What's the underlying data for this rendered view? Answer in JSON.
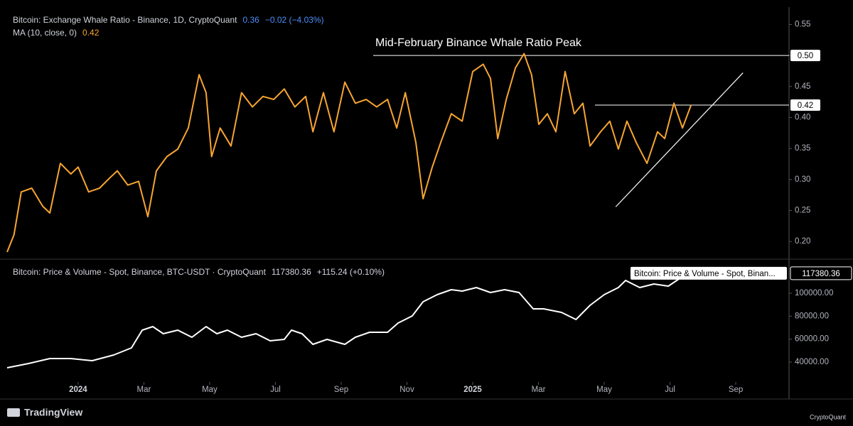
{
  "chart_data": [
    {
      "type": "line",
      "title": "Bitcoin: Exchange Whale Ratio - Binance, 1D, CryptoQuant",
      "last_value": 0.36,
      "change_label": "−0.02 (−4.03%)",
      "indicator": {
        "name": "MA (10, close, 0)",
        "value": 0.42
      },
      "annotation": "Mid-February Binance Whale Ratio Peak",
      "xlim": [
        -2.16,
        21.62
      ],
      "ylim": [
        0.175,
        0.578
      ],
      "yticks": [
        {
          "value": 0.2,
          "label": "0.20"
        },
        0.25,
        {
          "value": 0.3,
          "label": "0.30"
        },
        0.35,
        {
          "value": 0.4,
          "label": "0.40"
        },
        0.45,
        {
          "value": 0.5,
          "label": "0.50"
        },
        0.55
      ],
      "hlines": [
        {
          "value": 0.5,
          "label": "0.50"
        },
        {
          "value": 0.42,
          "label": "0.42"
        }
      ],
      "trendline": {
        "x": [
          16.35,
          20.22
        ],
        "values": [
          0.256,
          0.472
        ]
      },
      "series": [
        {
          "color": "#f7a531",
          "x": [
            -2.16,
            -1.95,
            -1.73,
            -1.41,
            -1.08,
            -0.86,
            -0.54,
            -0.22,
            0,
            0.32,
            0.65,
            0.97,
            1.19,
            1.51,
            1.84,
            2.12,
            2.38,
            2.7,
            3.03,
            3.35,
            3.68,
            3.89,
            4.06,
            4.32,
            4.65,
            4.97,
            5.3,
            5.62,
            5.95,
            6.27,
            6.59,
            6.92,
            7.14,
            7.46,
            7.78,
            8.11,
            8.43,
            8.76,
            9.08,
            9.41,
            9.69,
            9.95,
            10.27,
            10.49,
            10.77,
            11.03,
            11.35,
            11.68,
            12,
            12.32,
            12.54,
            12.76,
            13.02,
            13.3,
            13.56,
            13.79,
            14.01,
            14.27,
            14.53,
            14.81,
            15.09,
            15.35,
            15.57,
            15.89,
            16.17,
            16.43,
            16.69,
            16.97,
            17.3,
            17.62,
            17.84,
            18.12,
            18.38,
            18.64
          ],
          "values": [
            0.183,
            0.211,
            0.28,
            0.286,
            0.257,
            0.246,
            0.326,
            0.309,
            0.32,
            0.28,
            0.286,
            0.303,
            0.314,
            0.291,
            0.297,
            0.24,
            0.314,
            0.337,
            0.349,
            0.383,
            0.469,
            0.44,
            0.337,
            0.383,
            0.354,
            0.44,
            0.417,
            0.434,
            0.429,
            0.446,
            0.417,
            0.434,
            0.377,
            0.44,
            0.377,
            0.457,
            0.423,
            0.429,
            0.417,
            0.429,
            0.383,
            0.44,
            0.36,
            0.269,
            0.32,
            0.36,
            0.406,
            0.394,
            0.474,
            0.486,
            0.463,
            0.366,
            0.429,
            0.48,
            0.503,
            0.469,
            0.389,
            0.406,
            0.377,
            0.474,
            0.406,
            0.423,
            0.354,
            0.377,
            0.394,
            0.349,
            0.394,
            0.36,
            0.326,
            0.377,
            0.366,
            0.423,
            0.383,
            0.42
          ]
        }
      ]
    },
    {
      "type": "line",
      "title": "Bitcoin: Price & Volume - Spot, Binance, BTC-USDT · CryptoQuant",
      "last_value": 117380.36,
      "change_label": "+115.24 (+0.10%)",
      "tag": "Bitcoin: Price & Volume - Spot, Binan...",
      "xlim": [
        -2.16,
        21.62
      ],
      "ylim": [
        24540,
        126600
      ],
      "yticks": [
        {
          "value": 40000,
          "label": "40000.00"
        },
        {
          "value": 60000,
          "label": "60000.00"
        },
        {
          "value": 80000,
          "label": "80000.00"
        },
        {
          "value": 100000,
          "label": "100000.00"
        }
      ],
      "xticks": [
        {
          "value": 0,
          "label": "2024"
        },
        {
          "value": 2,
          "label": "Mar"
        },
        {
          "value": 4,
          "label": "May"
        },
        {
          "value": 6,
          "label": "Jul"
        },
        {
          "value": 8,
          "label": "Sep"
        },
        {
          "value": 10,
          "label": "Nov"
        },
        {
          "value": 12,
          "label": "2025"
        },
        {
          "value": 14,
          "label": "Mar"
        },
        {
          "value": 16,
          "label": "May"
        },
        {
          "value": 18,
          "label": "Jul"
        },
        {
          "value": 20,
          "label": "Sep"
        }
      ],
      "series": [
        {
          "color": "#ffffff",
          "x": [
            -2.16,
            -1.51,
            -0.86,
            -0.22,
            0.43,
            1.08,
            1.62,
            1.95,
            2.27,
            2.59,
            3.03,
            3.46,
            3.89,
            4.22,
            4.54,
            4.97,
            5.41,
            5.84,
            6.27,
            6.49,
            6.81,
            7.14,
            7.57,
            8.11,
            8.43,
            8.86,
            9.41,
            9.73,
            10.16,
            10.49,
            10.92,
            11.35,
            11.68,
            12.11,
            12.54,
            12.97,
            13.41,
            13.84,
            14.16,
            14.7,
            15.14,
            15.57,
            16,
            16.43,
            16.65,
            17.08,
            17.51,
            17.95,
            18.27
          ],
          "values": [
            35050,
            38760,
            43090,
            43090,
            41240,
            46180,
            52370,
            67830,
            70920,
            64740,
            67830,
            61650,
            70920,
            64740,
            67830,
            61650,
            64740,
            58550,
            59790,
            67830,
            64740,
            55460,
            59790,
            55460,
            61650,
            65970,
            65970,
            74010,
            80200,
            92570,
            98750,
            103080,
            101840,
            104930,
            100610,
            103080,
            100610,
            86380,
            86380,
            83290,
            77110,
            89480,
            98750,
            104930,
            111120,
            104930,
            108030,
            106170,
            112360
          ]
        }
      ]
    }
  ],
  "footer": {
    "left": "TradingView",
    "right": "CryptoQuant"
  }
}
